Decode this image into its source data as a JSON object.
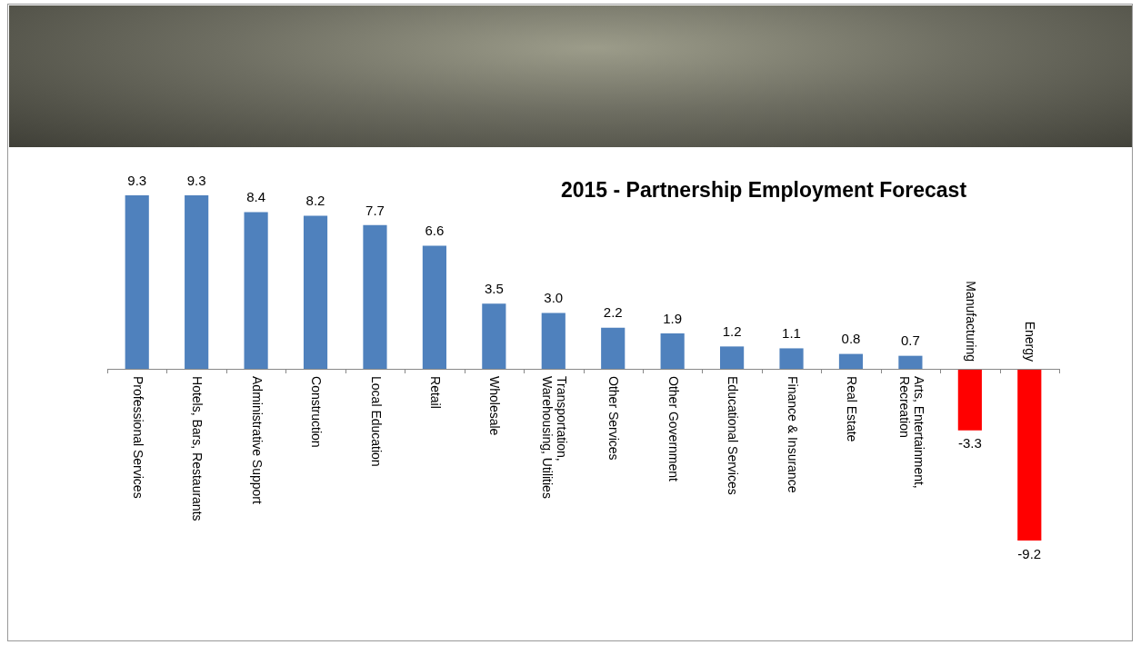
{
  "chart_data": {
    "type": "bar",
    "title": "2015 - Partnership Employment Forecast",
    "categories": [
      "Professional Services",
      "Hotels, Bars, Restaurants",
      "Administrative Support",
      "Construction",
      "Local Education",
      "Retail",
      "Wholesale",
      "Transportation, Warehousing, Utilities",
      "Other Services",
      "Other Government",
      "Educational Services",
      "Finance & Insurance",
      "Real Estate",
      "Arts, Entertainment, Recreation",
      "Manufacturing",
      "Energy"
    ],
    "values": [
      9.3,
      9.3,
      8.4,
      8.2,
      7.7,
      6.6,
      3.5,
      3.0,
      2.2,
      1.9,
      1.2,
      1.1,
      0.8,
      0.7,
      -3.3,
      -9.2
    ],
    "colors": [
      "#4f81bd",
      "#4f81bd",
      "#4f81bd",
      "#4f81bd",
      "#4f81bd",
      "#4f81bd",
      "#4f81bd",
      "#4f81bd",
      "#4f81bd",
      "#4f81bd",
      "#4f81bd",
      "#4f81bd",
      "#4f81bd",
      "#4f81bd",
      "#ff0000",
      "#ff0000"
    ],
    "value_labels": [
      "9.3",
      "9.3",
      "8.4",
      "8.2",
      "7.7",
      "6.6",
      "3.5",
      "3.0",
      "2.2",
      "1.9",
      "1.2",
      "1.1",
      "0.8",
      "0.7",
      "-3.3",
      "-9.2"
    ],
    "legend": false
  }
}
